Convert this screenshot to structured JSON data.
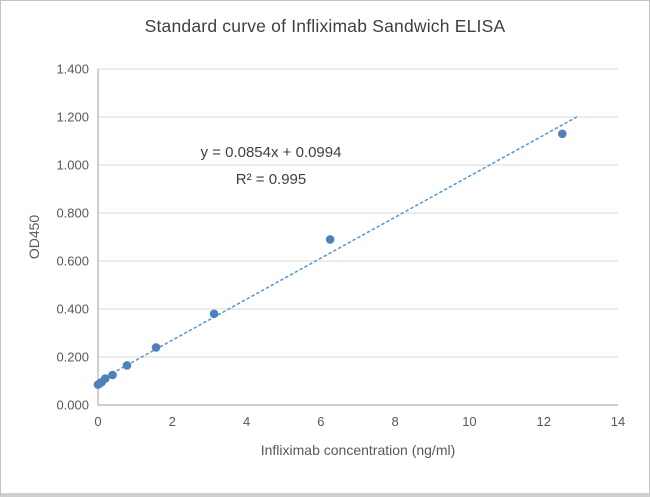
{
  "chart_data": {
    "type": "scatter",
    "title": "Standard curve of Infliximab Sandwich ELISA",
    "xlabel": "Infliximab concentration (ng/ml)",
    "ylabel": "OD450",
    "xlim": [
      0,
      14
    ],
    "ylim": [
      0,
      1.4
    ],
    "grid": "horizontal",
    "legend": "none",
    "x_ticks": [
      0,
      2,
      4,
      6,
      8,
      10,
      12,
      14
    ],
    "y_ticks": [
      {
        "v": 0.0,
        "label": "0.000"
      },
      {
        "v": 0.2,
        "label": "0.200"
      },
      {
        "v": 0.4,
        "label": "0.400"
      },
      {
        "v": 0.6,
        "label": "0.600"
      },
      {
        "v": 0.8,
        "label": "0.800"
      },
      {
        "v": 1.0,
        "label": "1.000"
      },
      {
        "v": 1.2,
        "label": "1.200"
      },
      {
        "v": 1.4,
        "label": "1.400"
      }
    ],
    "points": [
      {
        "x": 0,
        "y": 0.085
      },
      {
        "x": 0.049,
        "y": 0.09
      },
      {
        "x": 0.098,
        "y": 0.095
      },
      {
        "x": 0.195,
        "y": 0.11
      },
      {
        "x": 0.391,
        "y": 0.125
      },
      {
        "x": 0.781,
        "y": 0.165
      },
      {
        "x": 1.563,
        "y": 0.24
      },
      {
        "x": 3.125,
        "y": 0.38
      },
      {
        "x": 6.25,
        "y": 0.69
      },
      {
        "x": 12.5,
        "y": 1.13
      }
    ],
    "trendline": {
      "slope": 0.0854,
      "intercept": 0.0994,
      "x_start": 0,
      "x_end": 12.9,
      "style": "dotted"
    },
    "annotation": {
      "equation": "y = 0.0854x + 0.0994",
      "r_squared": "R² = 0.995"
    },
    "colors": {
      "marker": "#4f81bd",
      "trendline": "#5b9bd5",
      "gridline": "#d9d9d9",
      "axis": "#a0a0a0",
      "tick_text": "#595959",
      "title_text": "#404040"
    }
  }
}
